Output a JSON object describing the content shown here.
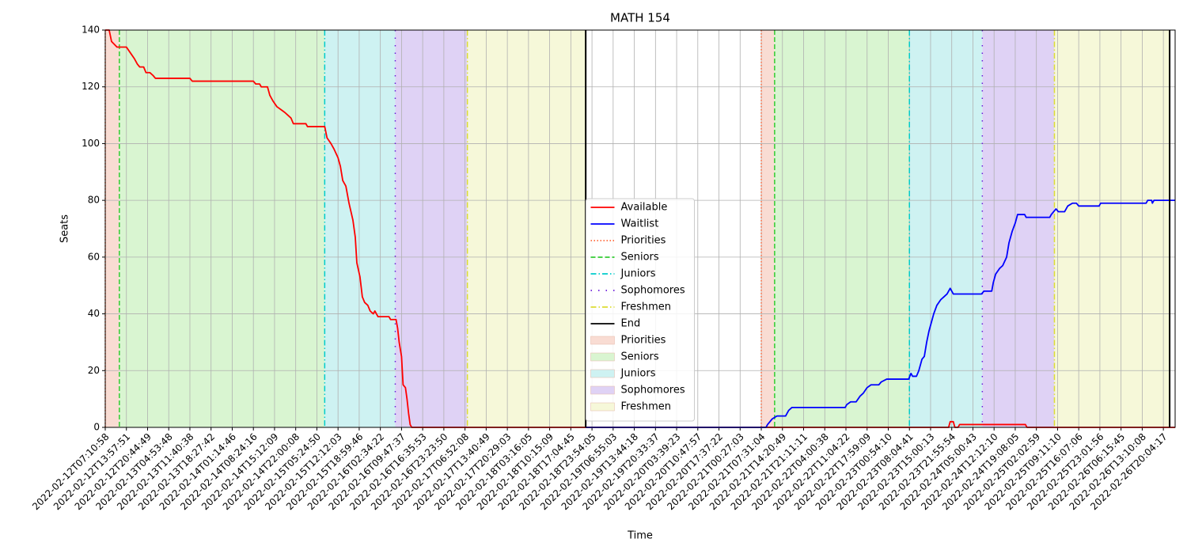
{
  "chart_data": {
    "type": "line",
    "title": "MATH 154",
    "x_label": "Time",
    "y_label": "Seats",
    "ylim": [
      0,
      140
    ],
    "yticks": [
      0,
      20,
      40,
      60,
      80,
      100,
      120,
      140
    ],
    "xlim": [
      0,
      1365
    ],
    "xticks": [
      {
        "value": 0,
        "label": "2022-02-12T07:10:58"
      },
      {
        "value": 27,
        "label": "2022-02-12T13:57:51"
      },
      {
        "value": 54,
        "label": "2022-02-12T20:44:49"
      },
      {
        "value": 81,
        "label": "2022-02-13T04:53:48"
      },
      {
        "value": 108,
        "label": "2022-02-13T11:40:38"
      },
      {
        "value": 135,
        "label": "2022-02-13T18:27:42"
      },
      {
        "value": 162,
        "label": "2022-02-14T01:14:46"
      },
      {
        "value": 189,
        "label": "2022-02-14T08:24:16"
      },
      {
        "value": 216,
        "label": "2022-02-14T15:12:09"
      },
      {
        "value": 243,
        "label": "2022-02-14T22:00:08"
      },
      {
        "value": 270,
        "label": "2022-02-15T05:24:50"
      },
      {
        "value": 297,
        "label": "2022-02-15T12:12:03"
      },
      {
        "value": 324,
        "label": "2022-02-15T18:59:46"
      },
      {
        "value": 351,
        "label": "2022-02-16T02:34:22"
      },
      {
        "value": 378,
        "label": "2022-02-16T09:47:37"
      },
      {
        "value": 405,
        "label": "2022-02-16T16:35:53"
      },
      {
        "value": 432,
        "label": "2022-02-16T23:23:50"
      },
      {
        "value": 459,
        "label": "2022-02-17T06:52:08"
      },
      {
        "value": 486,
        "label": "2022-02-17T13:40:49"
      },
      {
        "value": 513,
        "label": "2022-02-17T20:29:03"
      },
      {
        "value": 540,
        "label": "2022-02-18T03:16:05"
      },
      {
        "value": 567,
        "label": "2022-02-18T10:15:09"
      },
      {
        "value": 594,
        "label": "2022-02-18T17:04:45"
      },
      {
        "value": 621,
        "label": "2022-02-18T23:54:05"
      },
      {
        "value": 648,
        "label": "2022-02-19T06:55:03"
      },
      {
        "value": 675,
        "label": "2022-02-19T13:44:18"
      },
      {
        "value": 702,
        "label": "2022-02-19T20:33:37"
      },
      {
        "value": 729,
        "label": "2022-02-20T03:39:23"
      },
      {
        "value": 756,
        "label": "2022-02-20T10:47:57"
      },
      {
        "value": 783,
        "label": "2022-02-20T17:37:22"
      },
      {
        "value": 810,
        "label": "2022-02-21T00:27:03"
      },
      {
        "value": 837,
        "label": "2022-02-21T07:31:04"
      },
      {
        "value": 864,
        "label": "2022-02-21T14:20:49"
      },
      {
        "value": 891,
        "label": "2022-02-21T21:11:11"
      },
      {
        "value": 918,
        "label": "2022-02-22T04:00:38"
      },
      {
        "value": 945,
        "label": "2022-02-22T11:04:22"
      },
      {
        "value": 972,
        "label": "2022-02-22T17:59:09"
      },
      {
        "value": 999,
        "label": "2022-02-23T00:54:10"
      },
      {
        "value": 1026,
        "label": "2022-02-23T08:04:41"
      },
      {
        "value": 1053,
        "label": "2022-02-23T15:00:13"
      },
      {
        "value": 1080,
        "label": "2022-02-23T21:55:54"
      },
      {
        "value": 1107,
        "label": "2022-02-24T05:00:43"
      },
      {
        "value": 1134,
        "label": "2022-02-24T12:12:10"
      },
      {
        "value": 1161,
        "label": "2022-02-24T19:08:05"
      },
      {
        "value": 1188,
        "label": "2022-02-25T02:02:59"
      },
      {
        "value": 1215,
        "label": "2022-02-25T09:11:10"
      },
      {
        "value": 1242,
        "label": "2022-02-25T16:07:06"
      },
      {
        "value": 1269,
        "label": "2022-02-25T23:01:56"
      },
      {
        "value": 1296,
        "label": "2022-02-26T06:15:45"
      },
      {
        "value": 1323,
        "label": "2022-02-26T13:10:08"
      },
      {
        "value": 1350,
        "label": "2022-02-26T20:04:17"
      }
    ],
    "grid": true,
    "legend": "lower center",
    "series": [
      {
        "name": "Available",
        "color": "#ff0000",
        "x": [
          0,
          5,
          8,
          15,
          27,
          32,
          37,
          41,
          44,
          49,
          52,
          57,
          61,
          64,
          108,
          111,
          189,
          192,
          197,
          199,
          207,
          210,
          214,
          219,
          224,
          229,
          233,
          237,
          240,
          256,
          258,
          280,
          283,
          288,
          292,
          297,
          300,
          303,
          307,
          311,
          316,
          319,
          321,
          325,
          328,
          331,
          335,
          338,
          342,
          344,
          348,
          362,
          364,
          371,
          373,
          375,
          378,
          380,
          383,
          385,
          387,
          389,
          391,
          1076,
          1078,
          1082,
          1084,
          1088,
          1090,
          1174,
          1176,
          1365
        ],
        "values": [
          140,
          140,
          136,
          134,
          134,
          132,
          130,
          128,
          127,
          127,
          125,
          125,
          124,
          123,
          123,
          122,
          122,
          121,
          121,
          120,
          120,
          117,
          115,
          113,
          112,
          111,
          110,
          109,
          107,
          107,
          106,
          106,
          102,
          100,
          98,
          95,
          92,
          87,
          85,
          79,
          73,
          67,
          58,
          53,
          46,
          44,
          43,
          41,
          40,
          41,
          39,
          39,
          38,
          38,
          35,
          30,
          25,
          15,
          14,
          10,
          5,
          1,
          0,
          0,
          2,
          2,
          0,
          0,
          1,
          1,
          0,
          0
        ]
      },
      {
        "name": "Waitlist",
        "color": "#0000ff",
        "x": [
          613,
          843,
          845,
          851,
          857,
          868,
          872,
          876,
          944,
          946,
          951,
          958,
          963,
          967,
          972,
          977,
          987,
          990,
          997,
          1025,
          1028,
          1030,
          1035,
          1038,
          1042,
          1045,
          1048,
          1051,
          1054,
          1057,
          1061,
          1066,
          1070,
          1074,
          1078,
          1082,
          1118,
          1121,
          1131,
          1133,
          1136,
          1141,
          1145,
          1150,
          1153,
          1157,
          1161,
          1164,
          1173,
          1175,
          1205,
          1207,
          1213,
          1216,
          1224,
          1228,
          1234,
          1239,
          1242,
          1268,
          1270,
          1328,
          1330,
          1335,
          1336,
          1338,
          1365
        ],
        "values": [
          0,
          0,
          1,
          3,
          4,
          4,
          6,
          7,
          7,
          8,
          9,
          9,
          11,
          12,
          14,
          15,
          15,
          16,
          17,
          17,
          19,
          18,
          18,
          20,
          24,
          25,
          30,
          34,
          37,
          40,
          43,
          45,
          46,
          47,
          49,
          47,
          47,
          48,
          48,
          51,
          54,
          56,
          57,
          60,
          65,
          69,
          72,
          75,
          75,
          74,
          74,
          75,
          77,
          76,
          76,
          78,
          79,
          79,
          78,
          78,
          79,
          79,
          80,
          80,
          79,
          80,
          80
        ]
      }
    ],
    "phases": [
      {
        "name": "Priorities",
        "color": "#ff6a3d",
        "dash": "dotted",
        "fill": "#f9dcd3"
      },
      {
        "name": "Seniors",
        "color": "#33cc33",
        "dash": "dashed",
        "fill": "#d9f5d1"
      },
      {
        "name": "Juniors",
        "color": "#00cccc",
        "dash": "dashdot",
        "fill": "#cef2f2"
      },
      {
        "name": "Sophomores",
        "color": "#6a1adb",
        "dash": "loose",
        "fill": "#dfd2f5"
      },
      {
        "name": "Freshmen",
        "color": "#dddd33",
        "dash": "dashdot",
        "fill": "#f6f8d9"
      }
    ],
    "end": {
      "name": "End",
      "color": "#000000"
    },
    "windows": [
      {
        "starts": [
          0,
          18,
          280,
          370,
          462
        ],
        "end": 613
      },
      {
        "starts": [
          837,
          854,
          1026,
          1119,
          1211
        ],
        "end": 1358
      }
    ]
  }
}
